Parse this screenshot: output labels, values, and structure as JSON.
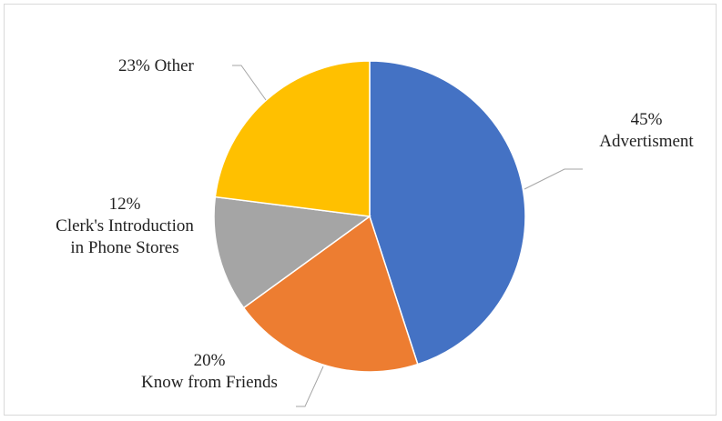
{
  "chart_data": {
    "type": "pie",
    "title": "",
    "slices": [
      {
        "pct_label": "45%",
        "name": "Advertisment",
        "value": 45,
        "color": "#4472C4"
      },
      {
        "pct_label": "20%",
        "name": "Know from Friends",
        "value": 20,
        "color": "#ED7D31"
      },
      {
        "pct_label": "12%",
        "name": "Clerk's Introduction in Phone Stores",
        "name_lines": [
          "Clerk's Introduction",
          "in Phone Stores"
        ],
        "value": 12,
        "color": "#A5A5A5"
      },
      {
        "pct_label": "23%",
        "name": "Other",
        "value": 23,
        "color": "#FFC000"
      }
    ],
    "start_angle_deg": 0,
    "direction": "clockwise",
    "legend": "none",
    "leader_line_color": "#A6A6A6"
  }
}
